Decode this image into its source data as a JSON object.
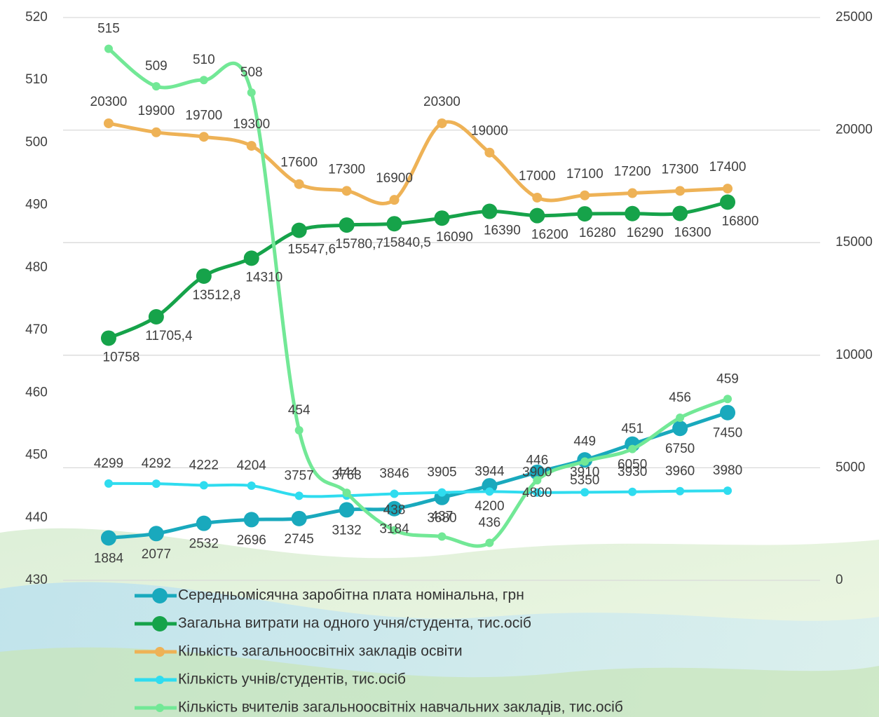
{
  "chart_data": {
    "type": "line",
    "categories": [
      null,
      null,
      null,
      null,
      null,
      null,
      null,
      null,
      null,
      null,
      null,
      null,
      null,
      null
    ],
    "ylim": [
      430,
      520
    ],
    "yticks": [
      430,
      440,
      450,
      460,
      470,
      480,
      490,
      500,
      510,
      520
    ],
    "y2lim": [
      0,
      25000
    ],
    "y2ticks": [
      0,
      5000,
      10000,
      15000,
      20000,
      25000
    ],
    "grid": true,
    "smooth": true,
    "legend": "bottom",
    "series": [
      {
        "name": "Середньомісячна заробітна плата номінальна, грн",
        "color": "#19a9bd",
        "axis": "y2",
        "values": [
          1884,
          2077,
          2532,
          2696,
          2745,
          3132,
          3184,
          3680,
          4200,
          4800,
          5350,
          6050,
          6750,
          7450
        ]
      },
      {
        "name": "Загальна витрати на одного учня/студента, тис.осіб",
        "color": "#16a34a",
        "axis": "y2",
        "values": [
          10758,
          11705.4,
          13512.8,
          14310,
          15547.6,
          15780.7,
          15840.5,
          16090,
          16390,
          16200,
          16280,
          16290,
          16300,
          16800
        ],
        "value_labels": [
          "10758",
          "11705,4",
          "13512,8",
          "14310",
          "15547,6",
          "15780,7",
          "15840,5",
          "16090",
          "16390",
          "16200",
          "16280",
          "16290",
          "16300",
          "16800"
        ]
      },
      {
        "name": "Кількість загальноосвітніх закладів  освіти",
        "color": "#eeb256",
        "axis": "y2",
        "values": [
          20300,
          19900,
          19700,
          19300,
          17600,
          17300,
          16900,
          20300,
          19000,
          17000,
          17100,
          17200,
          17300,
          17400
        ]
      },
      {
        "name": "Кількість учнів/студентів, тис.осіб",
        "color": "#2fdcef",
        "axis": "y2",
        "values": [
          4299,
          4292,
          4222,
          4204,
          3757,
          3763,
          3846,
          3905,
          3944,
          3900,
          3910,
          3930,
          3960,
          3980
        ]
      },
      {
        "name": "Кількість вчителів загальноосвітніх навчальних закладів, тис.осіб",
        "color": "#72e896",
        "values": [
          515,
          509,
          510,
          508,
          454,
          444,
          438,
          437,
          436,
          446,
          449,
          451,
          456,
          459
        ]
      }
    ]
  }
}
